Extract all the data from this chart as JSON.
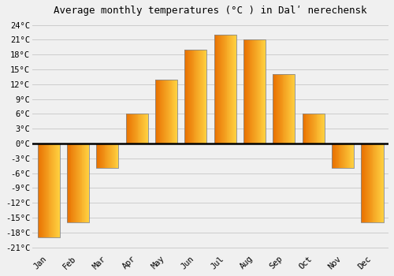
{
  "title": "Average monthly temperatures (°C ) in Dalʹ nerechensk",
  "months": [
    "Jan",
    "Feb",
    "Mar",
    "Apr",
    "May",
    "Jun",
    "Jul",
    "Aug",
    "Sep",
    "Oct",
    "Nov",
    "Dec"
  ],
  "temperatures": [
    -19,
    -16,
    -5,
    6,
    13,
    19,
    22,
    21,
    14,
    6,
    -5,
    -16
  ],
  "bar_color_left": "#E87000",
  "bar_color_right": "#FFD040",
  "bar_edge_color": "#888888",
  "background_color": "#F0F0F0",
  "grid_color": "#CCCCCC",
  "yticks": [
    -21,
    -18,
    -15,
    -12,
    -9,
    -6,
    -3,
    0,
    3,
    6,
    9,
    12,
    15,
    18,
    21,
    24
  ],
  "ylim": [
    -22,
    25
  ],
  "zero_line_color": "#000000",
  "title_fontsize": 9,
  "tick_fontsize": 7.5
}
